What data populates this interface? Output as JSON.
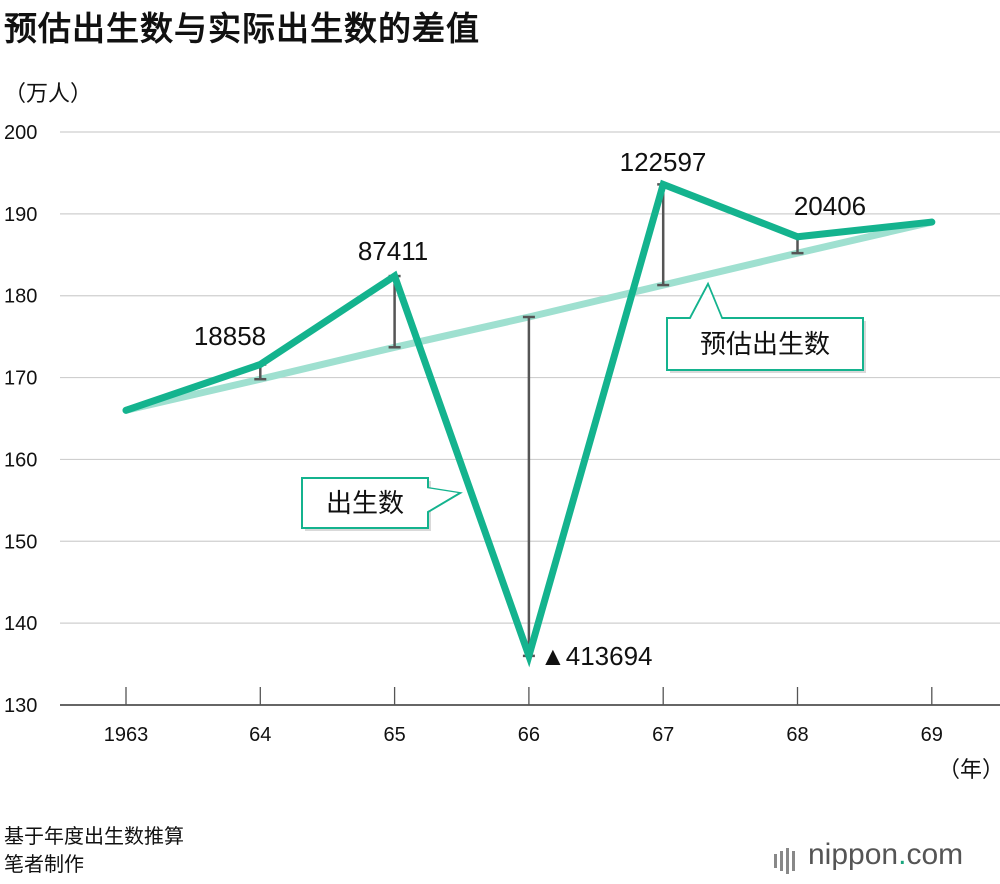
{
  "title": "预估出生数与实际出生数的差值",
  "y_unit": "（万人）",
  "x_unit": "（年）",
  "source": "基于年度出生数推算",
  "author": "笔者制作",
  "brand": {
    "name": "nippon",
    "dot": ".",
    "suffix": "com"
  },
  "colors": {
    "actual": "#14b38e",
    "estimated": "#9fe0d0",
    "gap": "#555555",
    "grid": "#cfcfcf",
    "callout_border": "#14b38e"
  },
  "chart_data": {
    "type": "line",
    "x": [
      "1963",
      "64",
      "65",
      "66",
      "67",
      "68",
      "69"
    ],
    "ylim": [
      130,
      200
    ],
    "yticks": [
      130,
      140,
      150,
      160,
      170,
      180,
      190,
      200
    ],
    "series": [
      {
        "name": "出生数",
        "values": [
          166,
          171.6,
          182.4,
          136,
          193.6,
          187.2,
          189
        ]
      },
      {
        "name": "预估出生数",
        "values": [
          166,
          169.8,
          173.7,
          177.4,
          181.3,
          185.2,
          189
        ]
      }
    ],
    "differences": [
      {
        "x": "64",
        "label": "18858"
      },
      {
        "x": "65",
        "label": "87411"
      },
      {
        "x": "66",
        "label": "▲413694"
      },
      {
        "x": "67",
        "label": "122597"
      },
      {
        "x": "68",
        "label": "20406"
      }
    ]
  }
}
